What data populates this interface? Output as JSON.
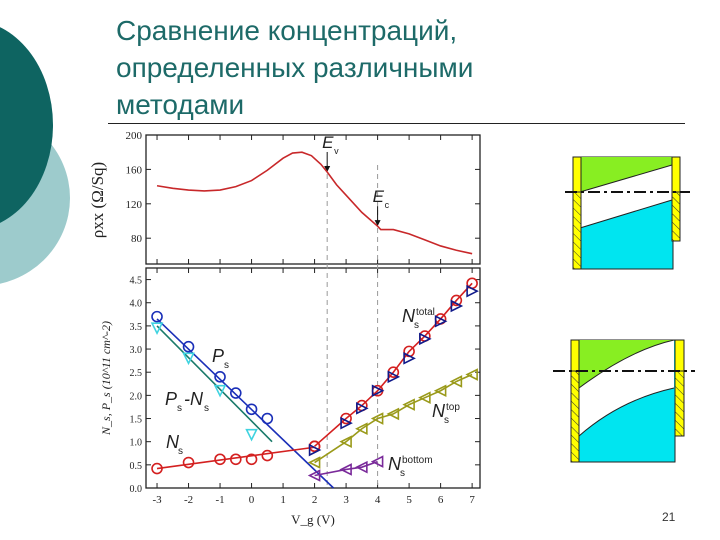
{
  "slide": {
    "title": "Сравнение концентраций,\nопределенных различными\nметодами",
    "page_number": "21"
  },
  "colors": {
    "title": "#1d6a68",
    "red": "#d42020",
    "blue": "#1a2fb8",
    "cyan": "#3fd3e0",
    "teal_line": "#1a7a6a",
    "olive": "#9a9a1a",
    "purple": "#7a2a9a",
    "navy": "#101a8a"
  },
  "chart_data": [
    {
      "type": "line",
      "ylabel": "ρxx (Ω/Sq)",
      "xlim": [
        -3.35,
        7.25
      ],
      "ylim": [
        50,
        200
      ],
      "yticks": [
        "200",
        "160",
        "120",
        "80"
      ],
      "ytick_values": [
        200,
        160,
        120,
        80
      ],
      "series": [
        {
          "x": [
            -3,
            -2.5,
            -2,
            -1.5,
            -1,
            -0.5,
            0,
            0.5,
            1,
            1.3,
            1.6,
            1.9,
            2.2,
            2.4,
            2.7,
            3,
            3.5,
            4,
            4.1,
            4.5,
            5,
            5.5,
            6,
            6.5,
            7
          ],
          "y": [
            141,
            138,
            136,
            135,
            136,
            140,
            147,
            159,
            173,
            179,
            180,
            176,
            166,
            157,
            142,
            130,
            110,
            94,
            90,
            90,
            85,
            78,
            71,
            66,
            62
          ]
        }
      ],
      "annotations": [
        {
          "label": "E",
          "sub": "v",
          "x": 2.4
        },
        {
          "label": "E",
          "sub": "c",
          "x": 4.0
        }
      ]
    },
    {
      "type": "scatter",
      "ylabel": "N_s, P_s (10^11 cm^-2)",
      "xlabel": "V_g (V)",
      "xlim": [
        -3.35,
        7.25
      ],
      "ylim": [
        0,
        4.75
      ],
      "xticks": [
        "-3",
        "-2",
        "-1",
        "0",
        "1",
        "2",
        "3",
        "4",
        "5",
        "6",
        "7"
      ],
      "yticks": [
        "0.0",
        "0.5",
        "1.0",
        "1.5",
        "2.0",
        "2.5",
        "3.0",
        "3.5",
        "4.0",
        "4.5"
      ],
      "series": [
        {
          "name": "P_s",
          "label": "P",
          "sub": "s",
          "marker": "circle",
          "color": "#1a2fb8",
          "x": [
            -3,
            -2,
            -1,
            -0.5,
            0,
            0.5
          ],
          "y": [
            3.7,
            3.05,
            2.4,
            2.05,
            1.7,
            1.5
          ],
          "fit": [
            [
              -3,
              3.65
            ],
            [
              2.6,
              0
            ]
          ]
        },
        {
          "name": "P_s-N_s",
          "label": "P",
          "sub": "s",
          "label2": "-N",
          "sub2": "s",
          "marker": "tri-down",
          "color": "#3fd3e0",
          "linecolor": "#1a7a6a",
          "x": [
            -3,
            -2,
            -1,
            0
          ],
          "y": [
            3.45,
            2.8,
            2.1,
            1.15
          ],
          "fit": [
            [
              -3,
              3.5
            ],
            [
              0.65,
              1.0
            ]
          ]
        },
        {
          "name": "N_s",
          "label": "N",
          "sub": "s",
          "marker": "circle",
          "color": "#d42020",
          "x": [
            -3,
            -2,
            -1,
            -0.5,
            0,
            0.5,
            2
          ],
          "y": [
            0.42,
            0.55,
            0.62,
            0.62,
            0.62,
            0.7,
            0.9
          ],
          "fit": [
            [
              -3,
              0.42
            ],
            [
              2,
              0.88
            ]
          ]
        },
        {
          "name": "N_s^total",
          "label": "N",
          "sub": "s",
          "sup": "total",
          "marker": "circle",
          "color": "#d42020",
          "x": [
            2,
            3,
            3.5,
            4,
            4.5,
            5,
            5.5,
            6,
            6.5,
            7
          ],
          "y": [
            0.9,
            1.5,
            1.78,
            2.1,
            2.5,
            2.95,
            3.28,
            3.65,
            4.05,
            4.42
          ],
          "fit": "connect"
        },
        {
          "name": "N_s^total (sum)",
          "marker": "tri-right",
          "color": "#101a8a",
          "x": [
            2,
            3,
            3.5,
            4,
            4.5,
            5,
            5.5,
            6,
            6.5,
            7
          ],
          "y": [
            0.82,
            1.4,
            1.72,
            2.1,
            2.4,
            2.8,
            3.22,
            3.6,
            3.93,
            4.25
          ]
        },
        {
          "name": "N_s^top",
          "label": "N",
          "sub": "s",
          "sup": "top",
          "marker": "tri-left",
          "color": "#9a9a1a",
          "x": [
            2,
            3,
            3.5,
            4,
            4.5,
            5,
            5.5,
            6,
            6.5,
            7
          ],
          "y": [
            0.55,
            1.0,
            1.28,
            1.5,
            1.6,
            1.8,
            1.95,
            2.1,
            2.3,
            2.45
          ],
          "fit": "connect"
        },
        {
          "name": "N_s^bottom",
          "label": "N",
          "sub": "s",
          "sup": "bottom",
          "marker": "tri-left",
          "color": "#7a2a9a",
          "x": [
            2,
            3,
            3.5,
            4
          ],
          "y": [
            0.27,
            0.4,
            0.45,
            0.57
          ],
          "fit": "connect"
        }
      ]
    }
  ]
}
